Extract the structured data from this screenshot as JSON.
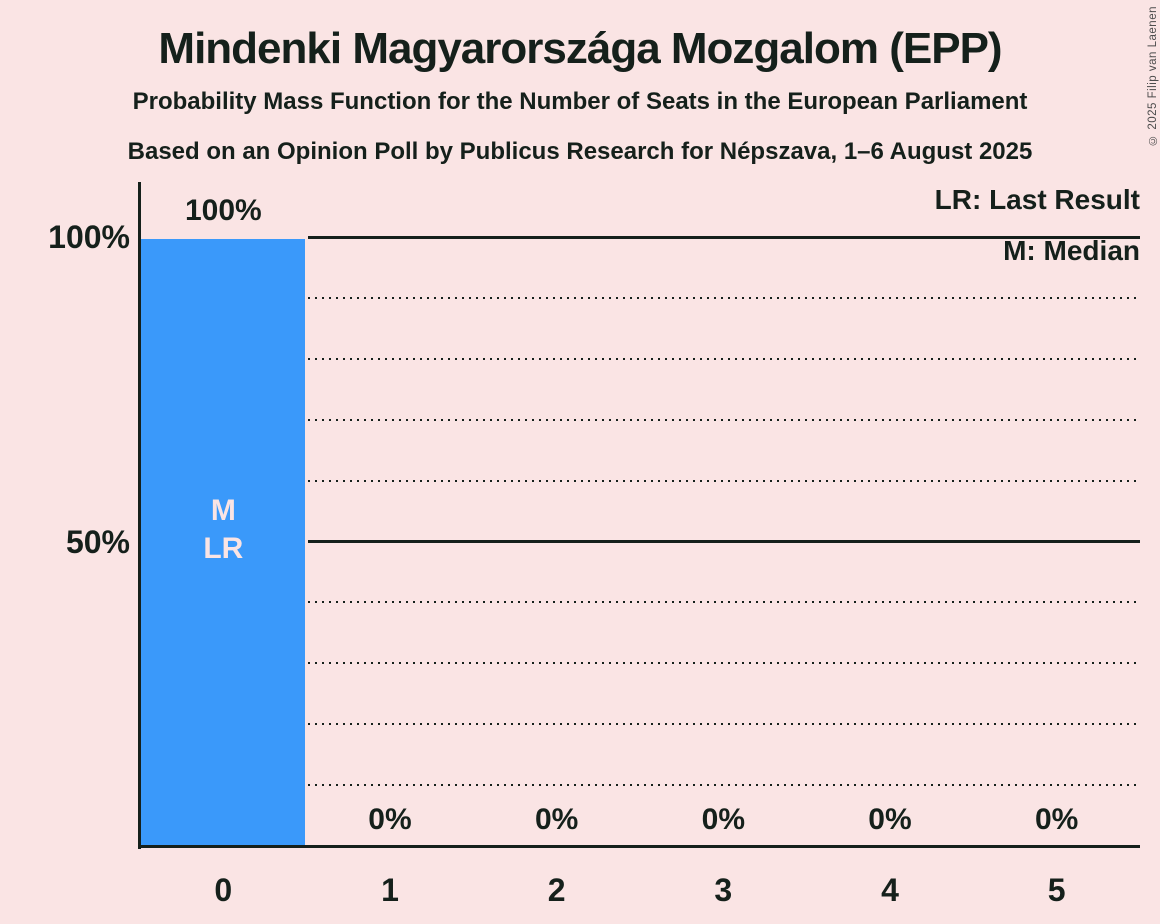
{
  "title": "Mindenki Magyarországa Mozgalom (EPP)",
  "subtitle_line1": "Probability Mass Function for the Number of Seats in the European Parliament",
  "subtitle_line2": "Based on an Opinion Poll by Publicus Research for Népszava, 1–6 August 2025",
  "copyright": "© 2025 Filip van Laenen",
  "legend": {
    "lr_label": "LR: Last Result",
    "m_label": "M: Median"
  },
  "colors": {
    "background": "#fae4e4",
    "bar": "#3a99fa",
    "text": "#15201b",
    "line": "#15201b",
    "bar_text": "#fae4e4",
    "copyright_text": "#4d4d4d"
  },
  "chart_data": {
    "type": "bar",
    "title": "Mindenki Magyarországa Mozgalom (EPP)",
    "subtitle": [
      "Probability Mass Function for the Number of Seats in the European Parliament",
      "Based on an Opinion Poll by Publicus Research for Népszava, 1–6 August 2025"
    ],
    "categories": [
      "0",
      "1",
      "2",
      "3",
      "4",
      "5"
    ],
    "values": [
      100,
      0,
      0,
      0,
      0,
      0
    ],
    "value_labels": [
      "100%",
      "0%",
      "0%",
      "0%",
      "0%",
      "0%"
    ],
    "ylim": [
      0,
      100
    ],
    "y_axis_ticks": [
      {
        "value": 100,
        "label": "100%"
      },
      {
        "value": 50,
        "label": "50%"
      }
    ],
    "gridlines": {
      "solid": [
        100,
        50
      ],
      "dotted": [
        90,
        80,
        70,
        60,
        40,
        30,
        20,
        10
      ]
    },
    "annotations": [
      {
        "column": 0,
        "lines": [
          "M",
          "LR"
        ],
        "meaning": [
          "Median",
          "Last Result"
        ]
      }
    ],
    "legend_position": "top-right",
    "legend_entries": [
      "LR: Last Result",
      "M: Median"
    ]
  }
}
